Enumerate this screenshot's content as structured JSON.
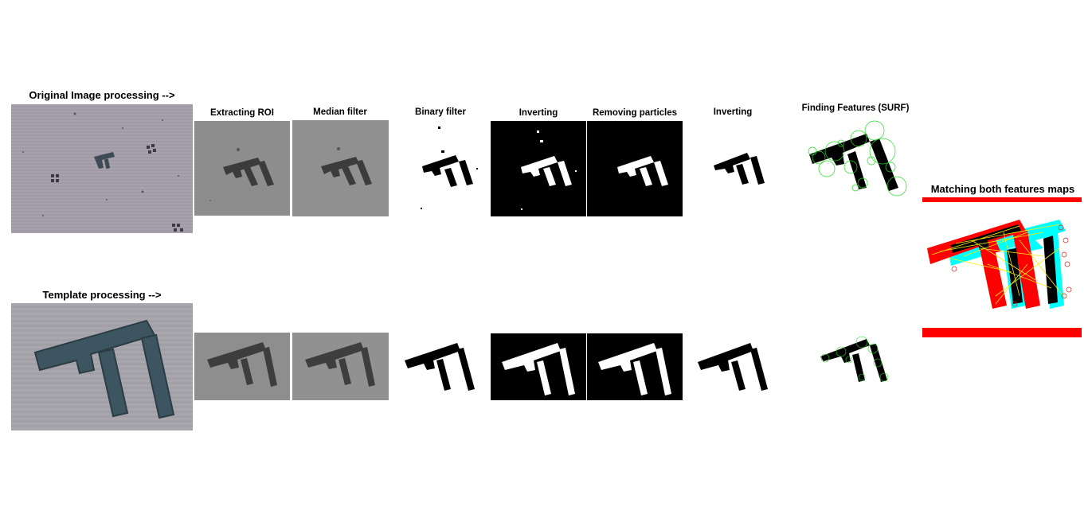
{
  "row_titles": {
    "original": "Original Image processing -->",
    "template": "Template processing -->"
  },
  "step_labels": {
    "extracting_roi": "Extracting ROI",
    "median_filter": "Median filter",
    "binary_filter": "Binary filter",
    "inverting_1": "Inverting",
    "removing_particles": "Removing particles",
    "inverting_2": "Inverting",
    "finding_features": "Finding Features (SURF)"
  },
  "matching": {
    "title": "Matching both features maps"
  },
  "colors": {
    "red": "#ff0000",
    "cyan": "#00ffff",
    "feature_green": "#22dd22",
    "match_yellow": "#ffee00",
    "gray_bg": "#8f8f8f",
    "micro_bg": "#a9a3ab"
  }
}
